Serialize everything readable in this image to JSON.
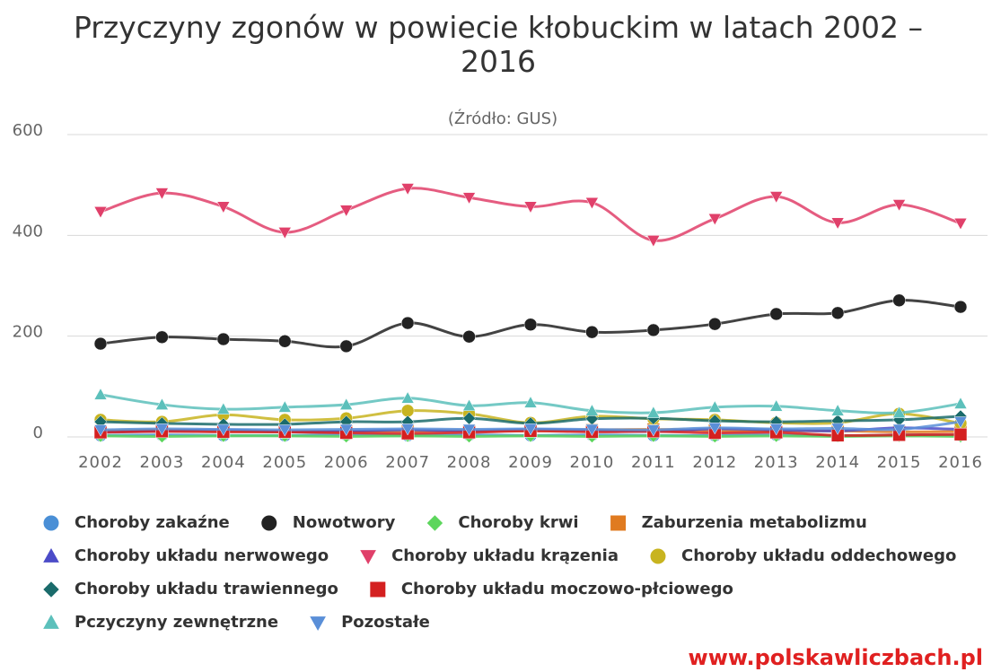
{
  "chart_data": {
    "type": "line",
    "title": "Przyczyny zgonów w powiecie kłobuckim w latach 2002 – 2016",
    "subtitle": "(Źródło: GUS)",
    "source": "www.polskawliczbach.pl",
    "categories": [
      "2002",
      "2003",
      "2004",
      "2005",
      "2006",
      "2007",
      "2008",
      "2009",
      "2010",
      "2011",
      "2012",
      "2013",
      "2014",
      "2015",
      "2016"
    ],
    "ylim": [
      0,
      600
    ],
    "yticks": [
      0,
      200,
      400,
      600
    ],
    "grid": true,
    "smooth": true,
    "series": [
      {
        "name": "Choroby zakaźne",
        "color": "#4a8fd6",
        "symbol": "circle",
        "values": [
          3,
          4,
          3,
          3,
          4,
          3,
          4,
          3,
          4,
          3,
          3,
          4,
          2,
          4,
          3
        ]
      },
      {
        "name": "Nowotwory",
        "color": "#222222",
        "symbol": "circle",
        "values": [
          185,
          198,
          194,
          190,
          180,
          226,
          199,
          223,
          208,
          212,
          224,
          244,
          246,
          271,
          258
        ]
      },
      {
        "name": "Choroby krwi",
        "color": "#5cd65c",
        "symbol": "diamond",
        "values": [
          2,
          1,
          2,
          2,
          1,
          2,
          1,
          2,
          1,
          2,
          1,
          2,
          1,
          2,
          1
        ]
      },
      {
        "name": "Zaburzenia metabolizmu",
        "color": "#e07b20",
        "symbol": "square",
        "values": [
          12,
          14,
          12,
          10,
          11,
          12,
          13,
          12,
          14,
          15,
          13,
          12,
          12,
          10,
          11
        ]
      },
      {
        "name": "Choroby układu nerwowego",
        "color": "#4b4bc8",
        "symbol": "triangle",
        "values": [
          10,
          12,
          14,
          11,
          12,
          14,
          12,
          15,
          13,
          11,
          16,
          14,
          12,
          18,
          15
        ]
      },
      {
        "name": "Choroby układu krązenia",
        "color": "#e0406a",
        "symbol": "triangle-down",
        "values": [
          447,
          484,
          457,
          406,
          450,
          493,
          475,
          457,
          465,
          390,
          433,
          477,
          425,
          461,
          424
        ]
      },
      {
        "name": "Choroby układu oddechowego",
        "color": "#c8b420",
        "symbol": "circle",
        "values": [
          34,
          30,
          44,
          34,
          37,
          52,
          46,
          28,
          41,
          36,
          34,
          28,
          28,
          46,
          27
        ]
      },
      {
        "name": "Choroby układu trawiennego",
        "color": "#1a6b6b",
        "symbol": "diamond",
        "values": [
          30,
          27,
          25,
          25,
          30,
          30,
          37,
          27,
          36,
          37,
          32,
          30,
          32,
          34,
          41
        ]
      },
      {
        "name": "Choroby układu moczowo-płciowego",
        "color": "#d42020",
        "symbol": "square",
        "values": [
          9,
          11,
          10,
          10,
          8,
          7,
          9,
          12,
          10,
          11,
          8,
          9,
          3,
          4,
          5
        ]
      },
      {
        "name": "Pczyczyny zewnętrzne",
        "color": "#5cc0bb",
        "symbol": "triangle",
        "values": [
          84,
          64,
          55,
          59,
          64,
          77,
          62,
          68,
          52,
          48,
          59,
          61,
          52,
          48,
          66
        ]
      },
      {
        "name": "Pozostałe",
        "color": "#5a8fd8",
        "symbol": "triangle-down",
        "values": [
          14,
          16,
          15,
          14,
          15,
          16,
          15,
          16,
          15,
          14,
          18,
          16,
          17,
          15,
          30
        ]
      }
    ]
  }
}
